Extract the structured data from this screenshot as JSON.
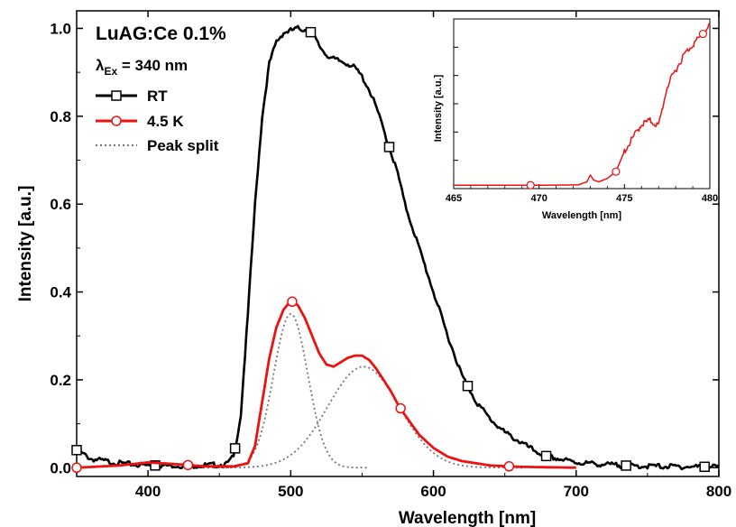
{
  "chart_data": [
    {
      "type": "line",
      "title": "LuAG:Ce 0.1%",
      "subtitle": "λEx = 340 nm",
      "subtitle_parts": {
        "symbol": "λ",
        "subscript": "Ex",
        "rest": " = 340 nm"
      },
      "xlabel": "Wavelength [nm]",
      "ylabel": "Intensity [a.u.]",
      "xlim": [
        350,
        800
      ],
      "ylim": [
        -0.02,
        1.04
      ],
      "xticks": [
        400,
        500,
        600,
        700,
        800
      ],
      "xtick_labels": [
        "400",
        "500",
        "600",
        "700",
        "800"
      ],
      "yticks": [
        0.0,
        0.2,
        0.4,
        0.6,
        0.8,
        1.0
      ],
      "ytick_labels": [
        "0.0",
        "0.2",
        "0.4",
        "0.6",
        "0.8",
        "1.0"
      ],
      "grid": false,
      "legend_position": "top-left",
      "series": [
        {
          "name": "RT",
          "color": "#000000",
          "marker": "open-square",
          "x": [
            350,
            360,
            380,
            400,
            420,
            440,
            455,
            460,
            465,
            470,
            475,
            480,
            485,
            490,
            495,
            500,
            505,
            510,
            515,
            520,
            525,
            530,
            535,
            540,
            545,
            550,
            555,
            560,
            565,
            570,
            575,
            580,
            590,
            600,
            610,
            620,
            630,
            640,
            650,
            660,
            670,
            680,
            700,
            720,
            740,
            760,
            780,
            800
          ],
          "y": [
            0.04,
            0.02,
            0.01,
            0.005,
            0.005,
            0.005,
            0.008,
            0.025,
            0.12,
            0.35,
            0.6,
            0.8,
            0.92,
            0.97,
            0.99,
            0.995,
            1.0,
            0.997,
            0.99,
            0.96,
            0.94,
            0.93,
            0.925,
            0.92,
            0.91,
            0.89,
            0.86,
            0.82,
            0.77,
            0.72,
            0.67,
            0.6,
            0.5,
            0.4,
            0.3,
            0.21,
            0.15,
            0.11,
            0.08,
            0.06,
            0.04,
            0.025,
            0.012,
            0.007,
            0.004,
            0.003,
            0.002,
            0.002
          ],
          "marker_x": [
            350,
            405,
            461,
            514,
            569,
            624,
            679,
            735,
            790
          ]
        },
        {
          "name": "4.5 K",
          "color": "#ee1111",
          "marker": "open-circle",
          "x": [
            350,
            380,
            400,
            420,
            440,
            460,
            470,
            475,
            480,
            485,
            490,
            495,
            500,
            505,
            510,
            515,
            520,
            525,
            530,
            535,
            540,
            545,
            550,
            555,
            560,
            565,
            570,
            575,
            580,
            590,
            600,
            610,
            620,
            640,
            660,
            680,
            700
          ],
          "y": [
            0.0,
            0.005,
            0.012,
            0.008,
            0.003,
            0.003,
            0.01,
            0.05,
            0.15,
            0.25,
            0.32,
            0.36,
            0.38,
            0.37,
            0.34,
            0.3,
            0.26,
            0.235,
            0.23,
            0.24,
            0.25,
            0.255,
            0.255,
            0.245,
            0.225,
            0.2,
            0.175,
            0.145,
            0.12,
            0.075,
            0.045,
            0.025,
            0.015,
            0.005,
            0.002,
            0.001,
            0.0
          ],
          "marker_x": [
            350,
            428,
            501,
            577,
            653
          ]
        },
        {
          "name": "Peak split",
          "color": "#777777",
          "style": "dotted",
          "components": [
            {
              "center": 500,
              "amplitude": 0.35,
              "sigma": 12
            },
            {
              "center": 551,
              "amplitude": 0.23,
              "sigma": 25
            }
          ]
        }
      ]
    },
    {
      "type": "line",
      "inset": true,
      "xlabel": "Wavelength [nm]",
      "ylabel": "Intensity [a.u.]",
      "xlim": [
        465,
        480
      ],
      "xticks": [
        465,
        470,
        475,
        480
      ],
      "xtick_labels": [
        "465",
        "470",
        "475",
        "480"
      ],
      "y_tick_labels_shown": false,
      "grid": false,
      "series": [
        {
          "name": "4.5 K",
          "color": "#ee1111",
          "marker": "open-circle",
          "x": [
            465,
            468,
            470,
            472.3,
            472.8,
            473.0,
            473.2,
            473.5,
            474.0,
            474.5,
            475.0,
            475.5,
            476.0,
            476.5,
            477.0,
            477.5,
            478.0,
            478.5,
            479.0,
            479.5,
            480.0
          ],
          "y": [
            0.02,
            0.02,
            0.02,
            0.022,
            0.04,
            0.08,
            0.05,
            0.04,
            0.06,
            0.1,
            0.22,
            0.3,
            0.38,
            0.4,
            0.37,
            0.6,
            0.7,
            0.79,
            0.85,
            0.9,
            0.96
          ],
          "marker_x": [
            469.5,
            474.5,
            479.6
          ]
        }
      ]
    }
  ]
}
